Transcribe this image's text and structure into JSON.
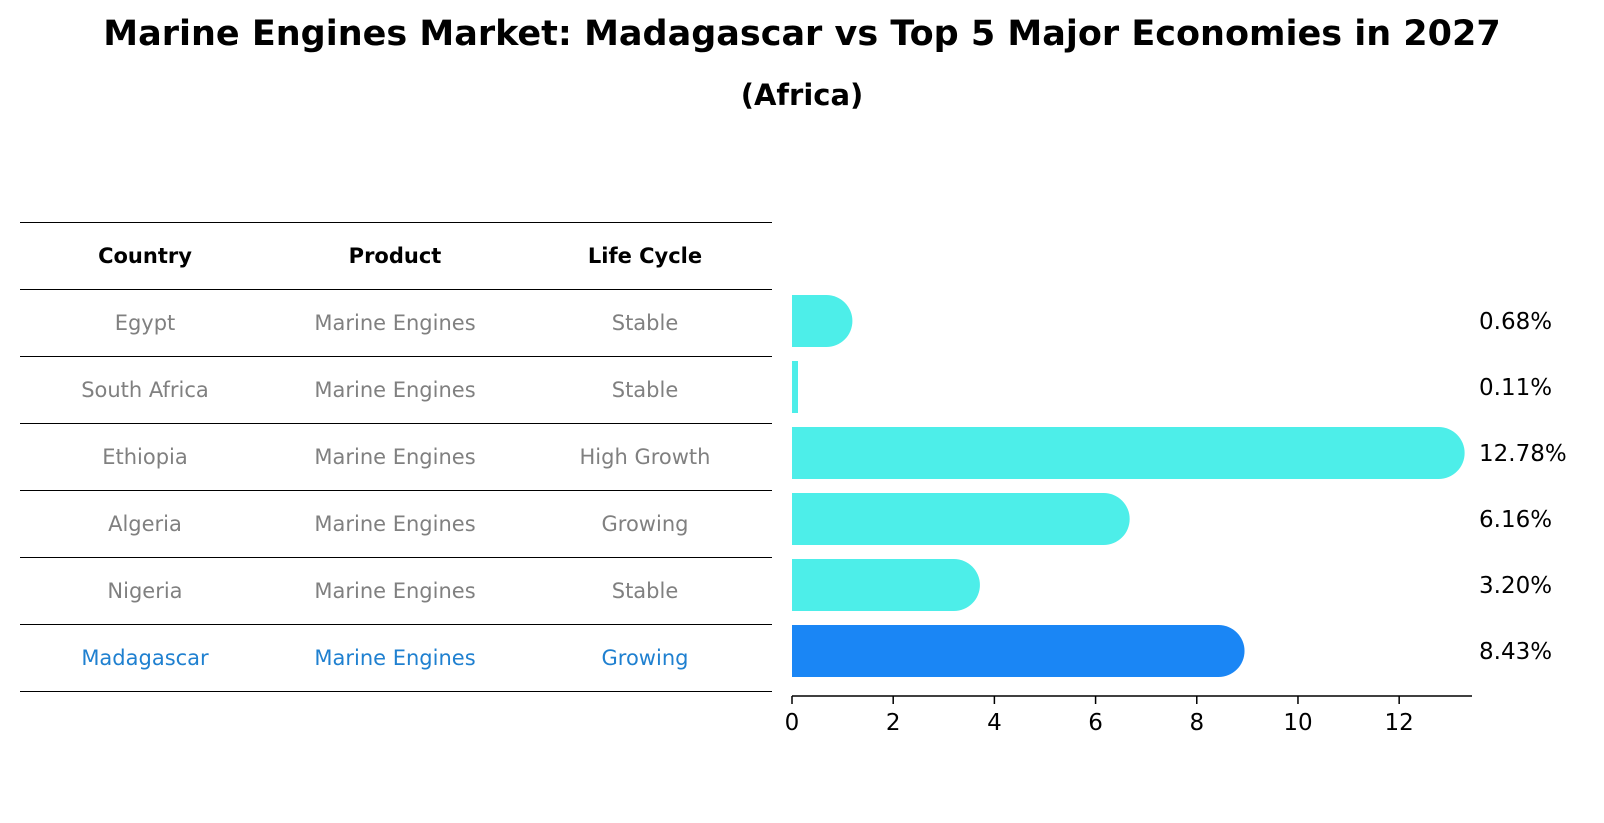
{
  "title": "Marine Engines Market: Madagascar vs Top 5 Major Economies in 2027",
  "subtitle": "(Africa)",
  "table": {
    "headers": [
      "Country",
      "Product",
      "Life Cycle"
    ],
    "rows": [
      [
        "Egypt",
        "Marine Engines",
        "Stable"
      ],
      [
        "South Africa",
        "Marine Engines",
        "Stable"
      ],
      [
        "Ethiopia",
        "Marine Engines",
        "High Growth"
      ],
      [
        "Algeria",
        "Marine Engines",
        "Growing"
      ],
      [
        "Nigeria",
        "Marine Engines",
        "Stable"
      ],
      [
        "Madagascar",
        "Marine Engines",
        "Growing"
      ]
    ]
  },
  "colors": {
    "bar": "#4deee9",
    "highlight": "#1a86f5",
    "muted_text": "#808080",
    "highlight_text": "#1f80d0"
  },
  "chart_data": {
    "type": "bar",
    "orientation": "horizontal",
    "categories": [
      "Egypt",
      "South Africa",
      "Ethiopia",
      "Algeria",
      "Nigeria",
      "Madagascar"
    ],
    "values": [
      0.68,
      0.11,
      12.78,
      6.16,
      3.2,
      8.43
    ],
    "value_labels": [
      "0.68%",
      "0.11%",
      "12.78%",
      "6.16%",
      "3.20%",
      "8.43%"
    ],
    "highlight": "Madagascar",
    "xlim": [
      0,
      13.4
    ],
    "xticks": [
      0,
      2,
      4,
      6,
      8,
      10,
      12
    ],
    "xlabel": "",
    "ylabel": "",
    "grid": false
  }
}
